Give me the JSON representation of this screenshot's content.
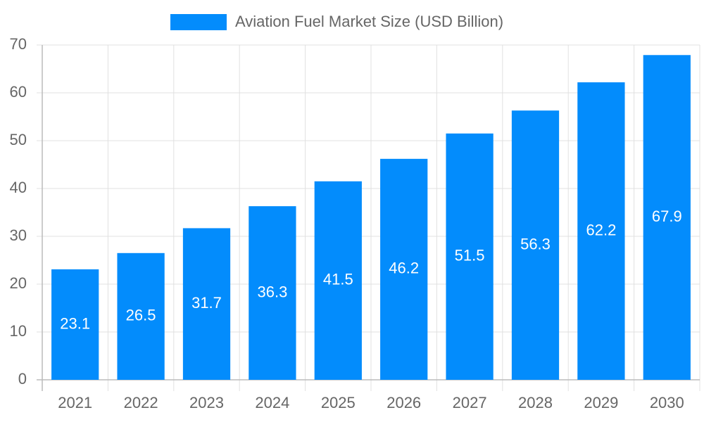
{
  "chart_data": {
    "type": "bar",
    "categories": [
      "2021",
      "2022",
      "2023",
      "2024",
      "2025",
      "2026",
      "2027",
      "2028",
      "2029",
      "2030"
    ],
    "series": [
      {
        "name": "Aviation Fuel Market Size (USD Billion)",
        "color": "#038cfc",
        "values": [
          23.1,
          26.5,
          31.7,
          36.3,
          41.5,
          46.2,
          51.5,
          56.3,
          62.2,
          67.9
        ]
      }
    ],
    "ylim": [
      0,
      70
    ],
    "yticks": [
      0,
      10,
      20,
      30,
      40,
      50,
      60,
      70
    ],
    "grid": true,
    "legend": "top"
  }
}
